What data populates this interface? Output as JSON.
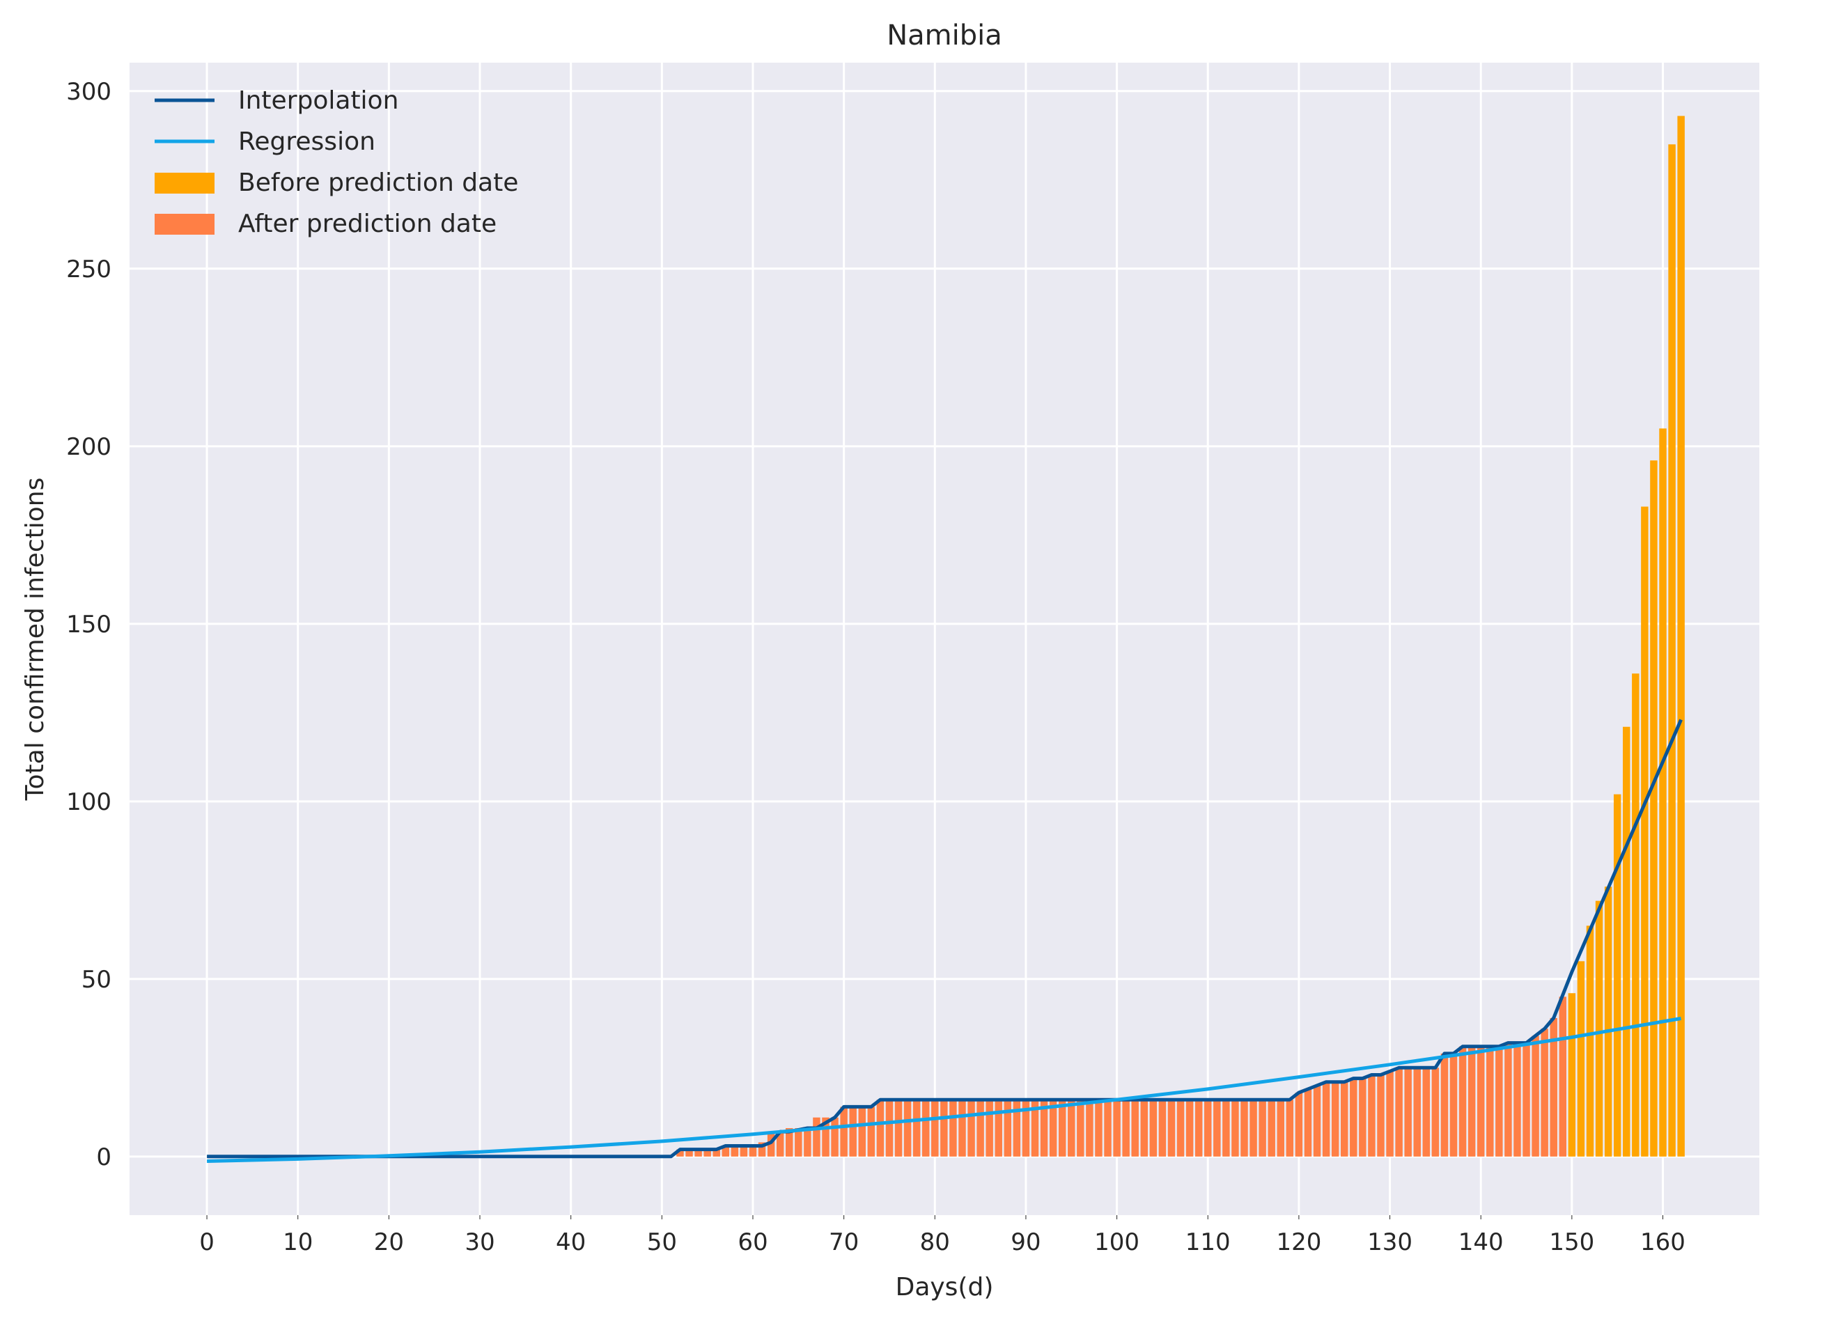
{
  "chart_data": {
    "type": "bar",
    "title": "Namibia",
    "xlabel": "Days(d)",
    "ylabel": "Total confirmed infections",
    "xlim": [
      -8.5,
      170.6
    ],
    "ylim": [
      -16.5,
      308
    ],
    "xticks": [
      0,
      10,
      20,
      30,
      40,
      50,
      60,
      70,
      80,
      90,
      100,
      110,
      120,
      130,
      140,
      150,
      160
    ],
    "yticks": [
      0,
      50,
      100,
      150,
      200,
      250,
      300
    ],
    "grid": true,
    "legend_position": "top-left",
    "legend": [
      "Interpolation",
      "Regression",
      "Before prediction date",
      "After prediction date"
    ],
    "bar_width_days": 0.8,
    "bars_after_prediction_date": {
      "name": "After prediction date",
      "color": "#ff7f45",
      "x": [
        52,
        53,
        54,
        55,
        56,
        57,
        58,
        59,
        60,
        61,
        62,
        63,
        64,
        65,
        66,
        67,
        68,
        69,
        70,
        71,
        72,
        73,
        74,
        75,
        76,
        77,
        78,
        79,
        80,
        81,
        82,
        83,
        84,
        85,
        86,
        87,
        88,
        89,
        90,
        91,
        92,
        93,
        94,
        95,
        96,
        97,
        98,
        99,
        100,
        101,
        102,
        103,
        104,
        105,
        106,
        107,
        108,
        109,
        110,
        111,
        112,
        113,
        114,
        115,
        116,
        117,
        118,
        119,
        120,
        121,
        122,
        123,
        124,
        125,
        126,
        127,
        128,
        129,
        130,
        131,
        132,
        133,
        134,
        135,
        136,
        137,
        138,
        139,
        140,
        141,
        142,
        143,
        144,
        145,
        146,
        147,
        148,
        149
      ],
      "values": [
        2,
        2,
        2,
        2,
        2,
        3,
        3,
        3,
        3,
        4,
        7,
        7,
        8,
        8,
        8,
        11,
        11,
        11,
        14,
        14,
        14,
        14,
        16,
        16,
        16,
        16,
        16,
        16,
        16,
        16,
        16,
        16,
        16,
        16,
        16,
        16,
        16,
        16,
        16,
        16,
        16,
        16,
        16,
        16,
        16,
        16,
        16,
        16,
        16,
        16,
        16,
        16,
        16,
        16,
        16,
        16,
        16,
        16,
        16,
        16,
        16,
        16,
        16,
        16,
        16,
        16,
        16,
        16,
        18,
        19,
        20,
        21,
        21,
        21,
        22,
        22,
        23,
        23,
        24,
        25,
        25,
        25,
        25,
        25,
        29,
        29,
        31,
        31,
        31,
        31,
        31,
        32,
        32,
        32,
        34,
        36,
        39,
        45
      ]
    },
    "bars_before_prediction_date": {
      "name": "Before prediction date",
      "color": "#ffa500",
      "x": [
        150,
        151,
        152,
        153,
        154,
        155,
        156,
        157,
        158,
        159,
        160,
        161,
        162
      ],
      "values": [
        46,
        55,
        65,
        72,
        76,
        102,
        121,
        136,
        183,
        196,
        205,
        285,
        293
      ]
    },
    "series": [
      {
        "name": "Interpolation",
        "color": "#0a5496",
        "x": [
          0,
          51,
          52,
          56,
          57,
          61,
          62,
          63,
          64,
          66,
          67,
          69,
          70,
          73,
          74,
          119,
          120,
          121,
          122,
          123,
          125,
          126,
          127,
          128,
          129,
          130,
          131,
          135,
          136,
          137,
          138,
          142,
          143,
          145,
          146,
          147,
          148,
          150,
          162
        ],
        "y": [
          0,
          0,
          2,
          2,
          3,
          3,
          4,
          7,
          7,
          8,
          8,
          11,
          14,
          14,
          16,
          16,
          18,
          19,
          20,
          21,
          21,
          22,
          22,
          23,
          23,
          24,
          25,
          25,
          29,
          29,
          31,
          31,
          32,
          32,
          34,
          36,
          39,
          52,
          123
        ]
      },
      {
        "name": "Regression",
        "color": "#12a4e8",
        "x": [
          0,
          10,
          20,
          30,
          40,
          50,
          60,
          70,
          80,
          90,
          100,
          110,
          120,
          130,
          140,
          150,
          162
        ],
        "y": [
          -1.3,
          -0.7,
          0.2,
          1.3,
          2.7,
          4.3,
          6.3,
          8.5,
          10.7,
          13.2,
          16.0,
          19.0,
          22.4,
          25.9,
          29.6,
          33.6,
          38.9
        ]
      }
    ]
  }
}
